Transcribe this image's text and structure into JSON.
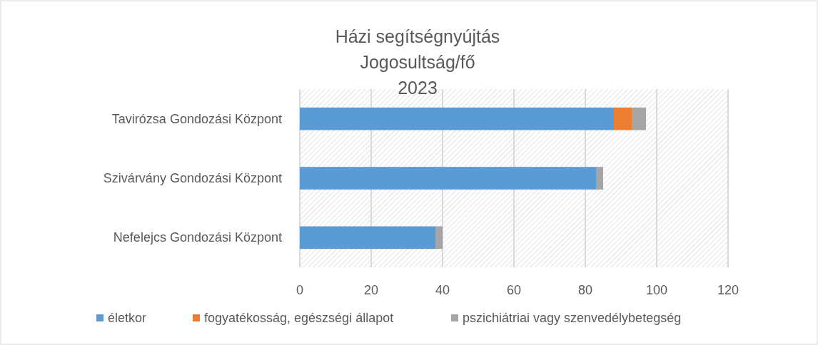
{
  "chart_data": {
    "type": "bar",
    "orientation": "horizontal",
    "stacked": true,
    "title": "Házi segítségnyújtás\nJogosultság/fő\n2023",
    "categories": [
      "Tavirózsa Gondozási Központ",
      "Szivárvány Gondozási Központ",
      "Nefelejcs Gondozási Központ"
    ],
    "series": [
      {
        "name": "életkor",
        "color": "#5b9bd5",
        "values": [
          88,
          83,
          38
        ]
      },
      {
        "name": "fogyatékosság, egészségi állapot",
        "color": "#ed7d31",
        "values": [
          5,
          0,
          0
        ]
      },
      {
        "name": "pszichiátriai vagy szenvedélybetegség",
        "color": "#a5a5a5",
        "values": [
          4,
          2,
          2
        ]
      }
    ],
    "xlim": [
      0,
      120
    ],
    "xticks": [
      0,
      20,
      40,
      60,
      80,
      100,
      120
    ],
    "grid": "x",
    "legend": "bottom"
  }
}
